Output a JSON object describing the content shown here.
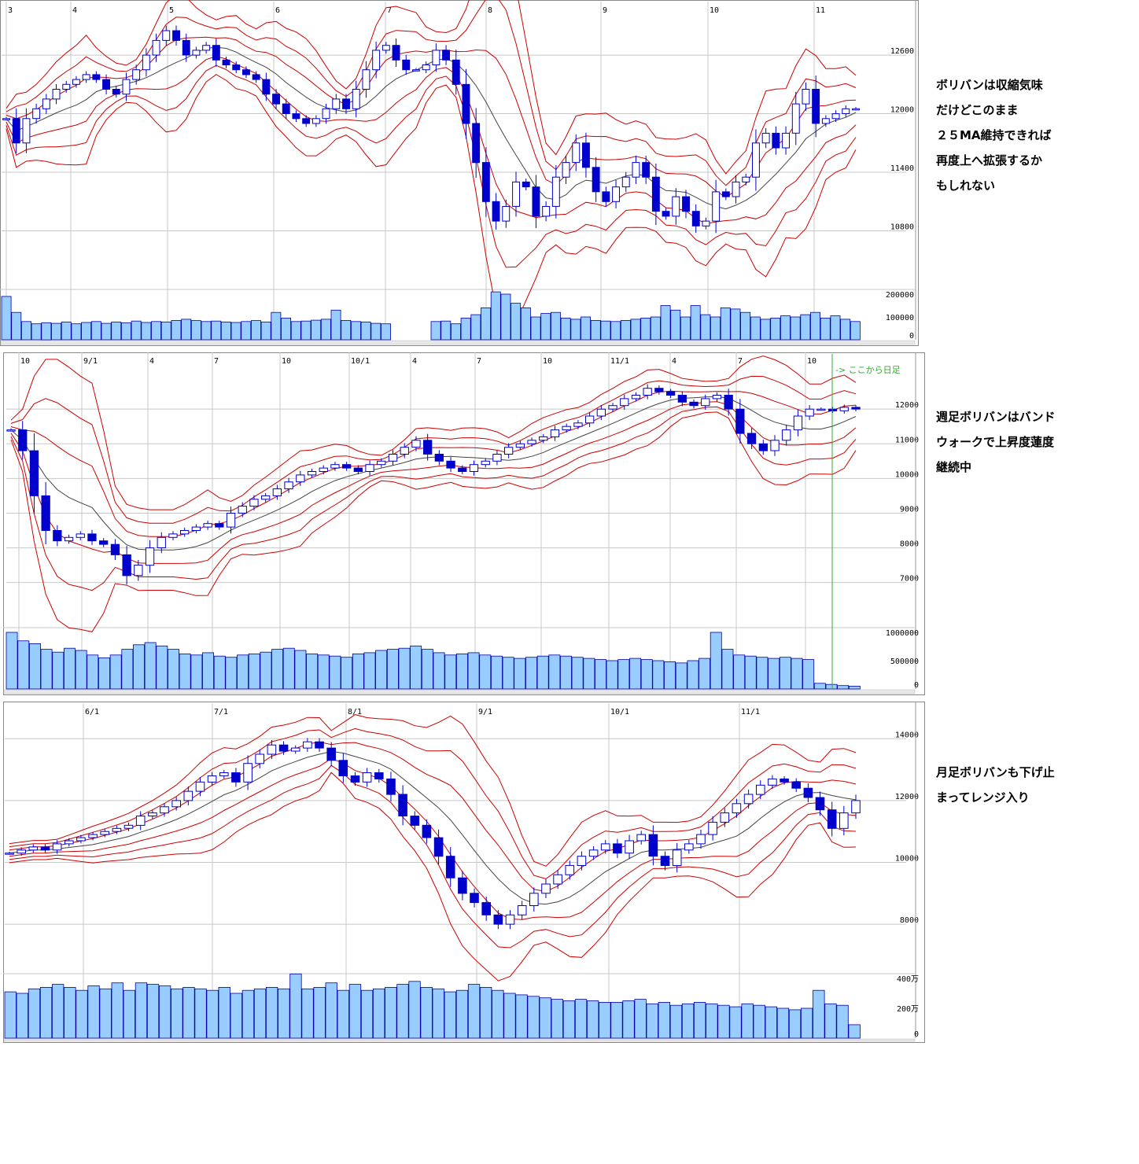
{
  "colors": {
    "band": "#cc0000",
    "ma": "#444444",
    "candle": "#0000cc",
    "volume_fill": "#99ccff",
    "volume_stroke": "#0000aa",
    "grid": "#c8c8c8",
    "marker": "#33aa33"
  },
  "charts": [
    {
      "id": "daily",
      "note_lines": [
        "ボリバンは収縮気味",
        "だけどこのまま",
        "２５MA維持できれば",
        "再度上へ拡張するか",
        "もしれない"
      ],
      "chart_data": {
        "type": "candlestick",
        "x_ticks": [
          "3",
          "4",
          "5",
          "6",
          "7",
          "8",
          "9",
          "10",
          "11"
        ],
        "price_ticks": [
          "12600",
          "12000",
          "11400",
          "10800"
        ],
        "price_tick_values": [
          12600,
          12000,
          11400,
          10800
        ],
        "volume_ticks": [
          "200000",
          "100000",
          "0"
        ],
        "volume_tick_values": [
          200000,
          100000,
          0
        ],
        "ylim": [
          10200,
          13100
        ],
        "vol_max": 200000,
        "close_path": [
          11950,
          11700,
          11950,
          12050,
          12150,
          12250,
          12300,
          12350,
          12400,
          12350,
          12250,
          12200,
          12350,
          12450,
          12600,
          12750,
          12850,
          12750,
          12600,
          12650,
          12700,
          12550,
          12500,
          12450,
          12400,
          12350,
          12200,
          12100,
          12000,
          11950,
          11900,
          11950,
          12050,
          12150,
          12050,
          12250,
          12450,
          12650,
          12700,
          12550,
          12450,
          12450,
          12500,
          12650,
          12550,
          12300,
          11900,
          11500,
          11100,
          10900,
          11050,
          11300,
          11250,
          10950,
          11050,
          11350,
          11500,
          11700,
          11450,
          11200,
          11100,
          11250,
          11350,
          11500,
          11350,
          11000,
          10950,
          11150,
          11000,
          10850,
          10900,
          11200,
          11150,
          11300,
          11350,
          11700,
          11800,
          11650,
          11800,
          12100,
          12250,
          11900,
          11950,
          12000,
          12050,
          12050
        ]
      },
      "volume_path": [
        190000,
        120000,
        80000,
        70000,
        75000,
        72000,
        78000,
        70000,
        76000,
        80000,
        72000,
        78000,
        74000,
        82000,
        76000,
        80000,
        78000,
        85000,
        90000,
        84000,
        80000,
        82000,
        78000,
        76000,
        80000,
        84000,
        78000,
        120000,
        95000,
        80000,
        82000,
        86000,
        90000,
        130000,
        85000,
        80000,
        78000,
        72000,
        70000,
        0,
        0,
        0,
        0,
        80000,
        82000,
        70000,
        95000,
        110000,
        140000,
        210000,
        200000,
        160000,
        140000,
        100000,
        115000,
        120000,
        95000,
        90000,
        100000,
        85000,
        82000,
        80000,
        85000,
        90000,
        95000,
        100000,
        150000,
        130000,
        100000,
        150000,
        110000,
        100000,
        140000,
        135000,
        120000,
        100000,
        90000,
        95000,
        105000,
        100000,
        110000,
        120000,
        95000,
        105000,
        90000,
        80000
      ]
    },
    {
      "id": "weekly",
      "note_lines": [
        "週足ボリバンはバンド",
        "ウォークで上昇度蓮度",
        "継続中"
      ],
      "marker_text": "-> ここから日足",
      "chart_data": {
        "type": "candlestick",
        "x_ticks": [
          "10",
          "9/1",
          "4",
          "7",
          "10",
          "10/1",
          "4",
          "7",
          "10",
          "11/1",
          "4",
          "7",
          "10"
        ],
        "price_ticks": [
          "12000",
          "11000",
          "10000",
          "9000",
          "8000",
          "7000"
        ],
        "price_tick_values": [
          12000,
          11000,
          10000,
          9000,
          8000,
          7000
        ],
        "volume_ticks": [
          "1000000",
          "500000",
          "0"
        ],
        "volume_tick_values": [
          1000000,
          500000,
          0
        ],
        "ylim": [
          5700,
          13500
        ],
        "vol_max": 1000000,
        "close_path": [
          11400,
          10800,
          9500,
          8500,
          8200,
          8300,
          8400,
          8200,
          8100,
          7800,
          7200,
          7500,
          8000,
          8300,
          8400,
          8500,
          8600,
          8700,
          8600,
          9000,
          9200,
          9400,
          9500,
          9700,
          9900,
          10100,
          10200,
          10300,
          10400,
          10300,
          10200,
          10400,
          10500,
          10700,
          10900,
          11100,
          10700,
          10500,
          10300,
          10200,
          10400,
          10500,
          10700,
          10900,
          11000,
          11100,
          11200,
          11400,
          11500,
          11600,
          11800,
          12000,
          12100,
          12300,
          12400,
          12600,
          12500,
          12400,
          12200,
          12100,
          12300,
          12400,
          12000,
          11300,
          11000,
          10800,
          11100,
          11400,
          11800,
          12000,
          12000,
          11950,
          12050,
          12000
        ]
      },
      "volume_path": [
        1000000,
        850000,
        800000,
        700000,
        650000,
        720000,
        680000,
        600000,
        550000,
        600000,
        700000,
        780000,
        820000,
        760000,
        700000,
        620000,
        600000,
        640000,
        580000,
        560000,
        600000,
        620000,
        650000,
        700000,
        720000,
        680000,
        620000,
        600000,
        580000,
        560000,
        620000,
        640000,
        680000,
        700000,
        720000,
        760000,
        700000,
        640000,
        600000,
        620000,
        640000,
        600000,
        580000,
        560000,
        540000,
        560000,
        580000,
        600000,
        580000,
        560000,
        540000,
        520000,
        500000,
        520000,
        540000,
        520000,
        500000,
        480000,
        460000,
        500000,
        540000,
        1000000,
        700000,
        600000,
        580000,
        560000,
        540000,
        560000,
        540000,
        520000,
        100000,
        80000,
        60000,
        50000
      ]
    },
    {
      "id": "monthly",
      "note_lines": [
        "月足ボリバンも下げ止",
        "まってレンジ入り"
      ],
      "chart_data": {
        "type": "candlestick",
        "x_ticks": [
          "6/1",
          "7/1",
          "8/1",
          "9/1",
          "10/1",
          "11/1"
        ],
        "price_ticks": [
          "14000",
          "12000",
          "10000",
          "8000"
        ],
        "price_tick_values": [
          14000,
          12000,
          10000,
          8000
        ],
        "volume_ticks": [
          "400万",
          "200万",
          "0"
        ],
        "volume_tick_values": [
          4000000,
          2000000,
          0
        ],
        "ylim": [
          6400,
          15000
        ],
        "vol_max": 4000000,
        "close_path": [
          10300,
          10400,
          10500,
          10400,
          10600,
          10700,
          10800,
          10900,
          11000,
          11100,
          11200,
          11500,
          11600,
          11800,
          12000,
          12300,
          12600,
          12800,
          12900,
          12600,
          13200,
          13500,
          13800,
          13600,
          13700,
          13900,
          13700,
          13300,
          12800,
          12600,
          12900,
          12700,
          12200,
          11500,
          11200,
          10800,
          10200,
          9500,
          9000,
          8700,
          8300,
          8000,
          8300,
          8600,
          9000,
          9300,
          9600,
          9900,
          10200,
          10400,
          10600,
          10300,
          10700,
          10900,
          10200,
          9900,
          10400,
          10600,
          10900,
          11300,
          11600,
          11900,
          12200,
          12500,
          12700,
          12600,
          12400,
          12100,
          11700,
          11100,
          11600,
          12000
        ]
      },
      "volume_path": [
        3100000,
        3000000,
        3300000,
        3400000,
        3600000,
        3400000,
        3200000,
        3500000,
        3300000,
        3700000,
        3200000,
        3700000,
        3600000,
        3500000,
        3300000,
        3400000,
        3300000,
        3200000,
        3400000,
        3000000,
        3200000,
        3300000,
        3400000,
        3300000,
        4300000,
        3300000,
        3400000,
        3700000,
        3200000,
        3600000,
        3200000,
        3300000,
        3400000,
        3600000,
        3800000,
        3400000,
        3300000,
        3100000,
        3200000,
        3600000,
        3400000,
        3200000,
        3000000,
        2900000,
        2800000,
        2700000,
        2600000,
        2500000,
        2600000,
        2500000,
        2400000,
        2400000,
        2500000,
        2600000,
        2300000,
        2400000,
        2200000,
        2300000,
        2400000,
        2300000,
        2200000,
        2100000,
        2300000,
        2200000,
        2100000,
        2000000,
        1900000,
        2000000,
        3200000,
        2300000,
        2200000,
        900000
      ]
    }
  ]
}
